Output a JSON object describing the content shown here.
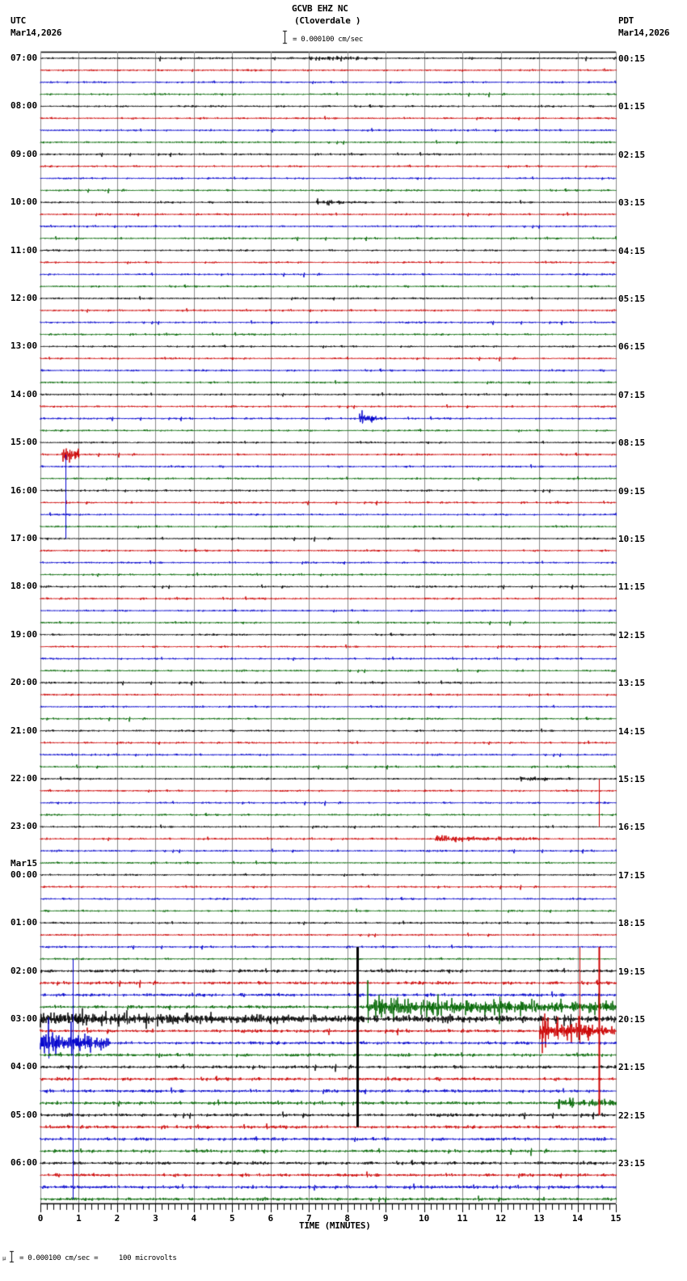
{
  "header": {
    "station": "GCVB EHZ NC",
    "location": "(Cloverdale )",
    "left_tz": "UTC",
    "left_date": "Mar14,2026",
    "right_tz": "PDT",
    "right_date": "Mar14,2026",
    "scale_text": "= 0.000100 cm/sec"
  },
  "footer": {
    "scale_text": "= 0.000100 cm/sec =     100 microvolts"
  },
  "chart_data": {
    "type": "line",
    "title": "GCVB EHZ NC (Cloverdale ) helicorder",
    "xlabel": "TIME (MINUTES)",
    "ylabel": "",
    "x_ticks": [
      "0",
      "1",
      "2",
      "3",
      "4",
      "5",
      "6",
      "7",
      "8",
      "9",
      "10",
      "11",
      "12",
      "13",
      "14",
      "15"
    ],
    "xlim": [
      0,
      15
    ],
    "grid": true,
    "trace_colors": [
      "#000000",
      "#cc0000",
      "#0000cc",
      "#006600"
    ],
    "traces_per_hour": 4,
    "minutes_per_trace": 15,
    "left_labels": [
      {
        "row": 0,
        "text": "07:00"
      },
      {
        "row": 4,
        "text": "08:00"
      },
      {
        "row": 8,
        "text": "09:00"
      },
      {
        "row": 12,
        "text": "10:00"
      },
      {
        "row": 16,
        "text": "11:00"
      },
      {
        "row": 20,
        "text": "12:00"
      },
      {
        "row": 24,
        "text": "13:00"
      },
      {
        "row": 28,
        "text": "14:00"
      },
      {
        "row": 32,
        "text": "15:00"
      },
      {
        "row": 36,
        "text": "16:00"
      },
      {
        "row": 40,
        "text": "17:00"
      },
      {
        "row": 44,
        "text": "18:00"
      },
      {
        "row": 48,
        "text": "19:00"
      },
      {
        "row": 52,
        "text": "20:00"
      },
      {
        "row": 56,
        "text": "21:00"
      },
      {
        "row": 60,
        "text": "22:00"
      },
      {
        "row": 64,
        "text": "23:00"
      },
      {
        "row": 68,
        "text": "00:00",
        "date": "Mar15"
      },
      {
        "row": 72,
        "text": "01:00"
      },
      {
        "row": 76,
        "text": "02:00"
      },
      {
        "row": 80,
        "text": "03:00"
      },
      {
        "row": 84,
        "text": "04:00"
      },
      {
        "row": 88,
        "text": "05:00"
      },
      {
        "row": 92,
        "text": "06:00"
      }
    ],
    "right_labels": [
      {
        "row": 0,
        "text": "00:15"
      },
      {
        "row": 4,
        "text": "01:15"
      },
      {
        "row": 8,
        "text": "02:15"
      },
      {
        "row": 12,
        "text": "03:15"
      },
      {
        "row": 16,
        "text": "04:15"
      },
      {
        "row": 20,
        "text": "05:15"
      },
      {
        "row": 24,
        "text": "06:15"
      },
      {
        "row": 28,
        "text": "07:15"
      },
      {
        "row": 32,
        "text": "08:15"
      },
      {
        "row": 36,
        "text": "09:15"
      },
      {
        "row": 40,
        "text": "10:15"
      },
      {
        "row": 44,
        "text": "11:15"
      },
      {
        "row": 48,
        "text": "12:15"
      },
      {
        "row": 52,
        "text": "13:15"
      },
      {
        "row": 56,
        "text": "14:15"
      },
      {
        "row": 60,
        "text": "15:15"
      },
      {
        "row": 64,
        "text": "16:15"
      },
      {
        "row": 68,
        "text": "17:15"
      },
      {
        "row": 72,
        "text": "18:15"
      },
      {
        "row": 76,
        "text": "19:15"
      },
      {
        "row": 80,
        "text": "20:15"
      },
      {
        "row": 84,
        "text": "21:15"
      },
      {
        "row": 88,
        "text": "22:15"
      },
      {
        "row": 92,
        "text": "23:15"
      }
    ],
    "total_traces": 96,
    "events": [
      {
        "row": 0,
        "start": 7.0,
        "end": 8.5,
        "amp": 2.5
      },
      {
        "row": 12,
        "start": 7.2,
        "end": 8.6,
        "amp": 2.5
      },
      {
        "row": 30,
        "start": 8.3,
        "end": 9.0,
        "amp": 5
      },
      {
        "row": 33,
        "start": 0.55,
        "end": 1.0,
        "amp": 14,
        "spike": 0.65,
        "spike_amp": 60
      },
      {
        "row": 60,
        "start": 12.5,
        "end": 13.8,
        "amp": 3
      },
      {
        "row": 65,
        "start": 10.3,
        "end": 13.0,
        "amp": 3
      },
      {
        "row": 79,
        "start": 8.5,
        "end": 15.0,
        "amp": 14
      },
      {
        "row": 80,
        "start": 0.0,
        "end": 15.0,
        "amp": 6
      },
      {
        "row": 81,
        "start": 13.0,
        "end": 15.0,
        "amp": 16
      },
      {
        "row": 82,
        "start": 0.0,
        "end": 1.8,
        "amp": 16
      },
      {
        "row": 87,
        "start": 13.5,
        "end": 15.0,
        "amp": 7
      }
    ],
    "spikes": [
      {
        "row": 74,
        "pos": 8.25,
        "up": 50,
        "down": 0,
        "color": 0,
        "width": 3,
        "to_row": 89
      },
      {
        "row": 74,
        "pos": 14.55,
        "up": 150,
        "down": 0,
        "color": 1,
        "width": 2,
        "to_row": 88
      },
      {
        "row": 74,
        "pos": 14.05,
        "up": 40,
        "down": 0,
        "color": 1,
        "width": 1,
        "to_row": 82
      },
      {
        "row": 75,
        "pos": 0.85,
        "up": 40,
        "down": 0,
        "color": 2,
        "width": 1,
        "to_row": 95
      },
      {
        "row": 33,
        "pos": 0.65,
        "up": 60,
        "down": 0,
        "color": 2,
        "width": 1,
        "to_row": 40
      },
      {
        "row": 60,
        "pos": 14.55,
        "up": 45,
        "down": 0,
        "color": 1,
        "width": 1,
        "to_row": 64
      }
    ]
  }
}
